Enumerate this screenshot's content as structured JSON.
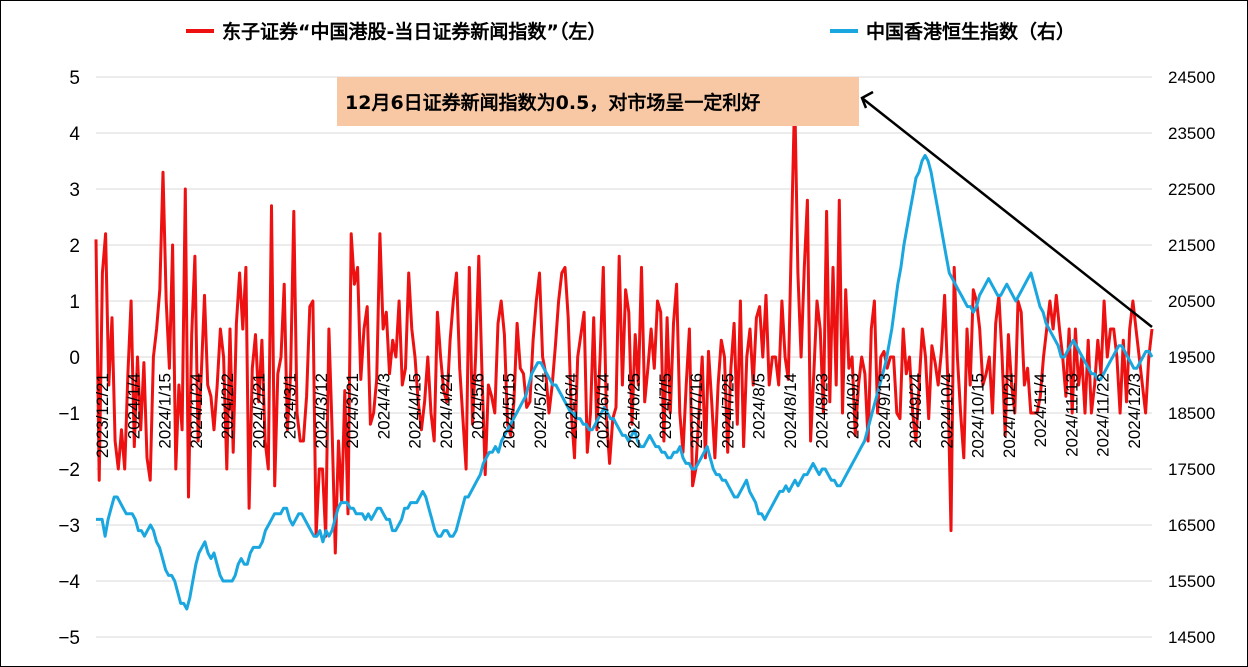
{
  "chart_data": {
    "type": "line",
    "colors": {
      "hsi_news": "#ee1111",
      "hsi": "#1aa7df",
      "annotation_bg": "#f8c8a4"
    },
    "legend": [
      {
        "label": "东子证券“中国港股-当日证券新闻指数”（左）",
        "color": "#ee1111"
      },
      {
        "label": "中国香港恒生指数（右）",
        "color": "#1aa7df"
      }
    ],
    "left_axis": {
      "min": -5,
      "max": 5,
      "ticks": [
        "5",
        "4",
        "3",
        "2",
        "1",
        "0",
        "−1",
        "−2",
        "−3",
        "−4",
        "−5"
      ]
    },
    "right_axis": {
      "min": 14500,
      "max": 24500,
      "ticks": [
        "24500",
        "23500",
        "22500",
        "21500",
        "20500",
        "19500",
        "18500",
        "17500",
        "16500",
        "15500",
        "14500"
      ]
    },
    "x_tick_labels": [
      "2023/12/21",
      "2024/1/4",
      "2024/1/15",
      "2024/1/24",
      "2024/2/2",
      "2024/2/21",
      "2024/3/1",
      "2024/3/12",
      "2024/3/21",
      "2024/4/3",
      "2024/4/15",
      "2024/4/24",
      "2024/5/6",
      "2024/5/15",
      "2024/5/24",
      "2024/6/4",
      "2024/6/14",
      "2024/6/25",
      "2024/7/5",
      "2024/7/16",
      "2024/7/25",
      "2024/8/5",
      "2024/8/14",
      "2024/8/23",
      "2024/9/3",
      "2024/9/13",
      "2024/9/24",
      "2024/10/4",
      "2024/10/15",
      "2024/10/24",
      "2024/11/4",
      "2024/11/13",
      "2024/11/22",
      "2024/12/3"
    ],
    "annotation": {
      "text": "12月6日证券新闻指数为0.5，对市场呈一定利好"
    },
    "series": [
      {
        "axis": "left",
        "values": [
          2.1,
          -2.2,
          1.5,
          2.2,
          -0.5,
          0.7,
          -1.5,
          -2.0,
          -1.3,
          -2.0,
          -0.3,
          1.0,
          -1.6,
          0.0,
          -1.3,
          -0.1,
          -1.8,
          -2.2,
          0.0,
          0.5,
          1.2,
          3.3,
          1.0,
          -0.2,
          2.0,
          -2.0,
          -0.5,
          -1.3,
          3.0,
          -2.5,
          0.4,
          1.8,
          -1.5,
          -0.3,
          1.1,
          -0.5,
          -0.7,
          -1.3,
          -0.5,
          0.5,
          0.0,
          -2.0,
          0.5,
          -1.7,
          0.6,
          1.5,
          0.5,
          1.6,
          -2.7,
          -0.2,
          0.4,
          -0.8,
          0.3,
          -1.5,
          -2.0,
          2.7,
          -2.3,
          -0.3,
          0.0,
          1.3,
          -1.3,
          -0.3,
          2.6,
          -1.0,
          -1.5,
          -1.5,
          -0.7,
          0.9,
          1.0,
          -3.2,
          -2.0,
          -2.0,
          -3.2,
          0.5,
          -1.3,
          -3.5,
          -1.5,
          -2.6,
          -0.6,
          -2.8,
          2.2,
          1.3,
          1.6,
          -0.4,
          0.5,
          0.9,
          -1.2,
          -1.0,
          -0.4,
          2.2,
          0.5,
          0.8,
          -0.3,
          0.3,
          0.0,
          1.0,
          -0.5,
          -0.2,
          1.5,
          0.5,
          0.0,
          -0.8,
          -1.3,
          -0.8,
          0.0,
          -1.0,
          -1.5,
          0.8,
          0.0,
          -0.6,
          -0.8,
          0.3,
          1.0,
          1.5,
          -0.2,
          -1.1,
          -2.0,
          1.6,
          -1.2,
          0.0,
          1.8,
          -0.3,
          -2.1,
          -0.5,
          -0.7,
          -1.0,
          0.6,
          1.0,
          0.4,
          -1.2,
          -1.4,
          -0.8,
          0.6,
          -0.2,
          -0.3,
          -0.9,
          -0.8,
          0.3,
          1.0,
          1.5,
          0.0,
          -0.3,
          -1.0,
          -0.5,
          0.2,
          1.0,
          1.5,
          1.6,
          0.7,
          -1.0,
          -1.8,
          0.0,
          0.4,
          0.8,
          -1.7,
          -1.0,
          0.7,
          -1.3,
          0.0,
          1.6,
          -1.1,
          -1.9,
          -1.1,
          -0.9,
          1.8,
          -0.5,
          1.2,
          0.8,
          -1.2,
          0.4,
          -0.5,
          1.6,
          -0.8,
          -0.2,
          0.5,
          -0.2,
          1.0,
          0.8,
          -1.5,
          0.7,
          -1.0,
          0.6,
          1.3,
          -1.0,
          -1.7,
          -0.5,
          0.5,
          -2.3,
          -2.0,
          -1.0,
          0.0,
          -1.8,
          0.1,
          -0.8,
          -1.8,
          -0.5,
          0.3,
          0.0,
          -1.7,
          -0.2,
          0.6,
          -1.2,
          1.0,
          -1.6,
          0.0,
          0.5,
          -0.5,
          0.7,
          0.9,
          0.0,
          1.1,
          -0.5,
          0.0,
          0.0,
          -0.5,
          1.0,
          0.0,
          -0.4,
          2.2,
          4.7,
          1.5,
          0.0,
          1.6,
          2.8,
          -1.5,
          -0.3,
          1.0,
          0.5,
          -1.0,
          2.6,
          -0.8,
          1.6,
          -0.5,
          2.8,
          -1.0,
          1.2,
          -0.2,
          0.0,
          -1.4,
          -0.5,
          0.0,
          -0.3,
          -1.5,
          0.5,
          1.0,
          -1.0,
          0.0,
          0.1,
          -0.2,
          0.0,
          0.0,
          -1.0,
          -1.1,
          0.5,
          -0.3,
          0.0,
          -1.0,
          -1.5,
          -0.5,
          0.5,
          0.0,
          -1.1,
          0.2,
          -0.1,
          -0.5,
          0.1,
          1.1,
          -0.4,
          -3.1,
          1.6,
          0.0,
          -1.0,
          -1.8,
          0.5,
          -0.5,
          1.2,
          1.0,
          0.5,
          -0.5,
          -0.3,
          0.0,
          -1.0,
          0.6,
          1.1,
          0.0,
          -1.4,
          0.4,
          -0.5,
          -1.0,
          1.0,
          0.8,
          -0.5,
          -0.2,
          -1.0,
          -1.0,
          -1.0,
          -0.7,
          0.0,
          0.5,
          1.0,
          0.5,
          1.1,
          0.5,
          0.0,
          -0.7,
          0.5,
          -1.0,
          0.5,
          -0.5,
          0.0,
          -1.0,
          0.3,
          -1.0,
          -0.5,
          0.3,
          -0.3,
          1.0,
          0.0,
          0.5,
          0.5,
          0.0,
          -1.0,
          0.3,
          -0.8,
          0.5,
          1.0,
          0.5,
          0.0,
          -0.5,
          -1.0,
          0.0,
          0.5
        ]
      },
      {
        "axis": "right",
        "values": [
          16600,
          16600,
          16600,
          16300,
          16600,
          16800,
          17000,
          17000,
          16900,
          16800,
          16700,
          16700,
          16700,
          16600,
          16400,
          16400,
          16300,
          16400,
          16500,
          16400,
          16200,
          16100,
          15900,
          15700,
          15600,
          15600,
          15500,
          15300,
          15100,
          15100,
          15000,
          15200,
          15500,
          15800,
          16000,
          16100,
          16200,
          16000,
          15900,
          16000,
          15800,
          15600,
          15500,
          15500,
          15500,
          15500,
          15600,
          15800,
          15900,
          15800,
          15800,
          16000,
          16100,
          16100,
          16100,
          16200,
          16400,
          16500,
          16600,
          16700,
          16700,
          16700,
          16800,
          16800,
          16600,
          16500,
          16600,
          16700,
          16700,
          16600,
          16500,
          16400,
          16300,
          16300,
          16400,
          16200,
          16400,
          16300,
          16400,
          16600,
          16800,
          16900,
          16900,
          16900,
          16800,
          16800,
          16700,
          16700,
          16700,
          16600,
          16700,
          16600,
          16700,
          16800,
          16800,
          16700,
          16600,
          16600,
          16400,
          16400,
          16500,
          16600,
          16800,
          16800,
          16900,
          16900,
          16900,
          17000,
          17100,
          17000,
          16800,
          16600,
          16400,
          16300,
          16300,
          16400,
          16400,
          16300,
          16300,
          16400,
          16600,
          16800,
          17000,
          17000,
          17100,
          17200,
          17300,
          17400,
          17600,
          17700,
          17800,
          17800,
          17900,
          17800,
          18000,
          18100,
          18200,
          18300,
          18400,
          18500,
          18600,
          18700,
          18800,
          19000,
          19200,
          19300,
          19400,
          19400,
          19300,
          19200,
          19100,
          19000,
          19000,
          18900,
          18800,
          18700,
          18600,
          18500,
          18500,
          18400,
          18400,
          18300,
          18300,
          18200,
          18200,
          18300,
          18400,
          18500,
          18600,
          18500,
          18400,
          18400,
          18300,
          18200,
          18100,
          18100,
          18000,
          18100,
          18200,
          18000,
          17900,
          17900,
          18000,
          18100,
          18000,
          17900,
          17900,
          17800,
          17800,
          17700,
          17700,
          17800,
          17800,
          17900,
          17700,
          17600,
          17600,
          17500,
          17500,
          17600,
          17700,
          17800,
          17900,
          17700,
          17500,
          17400,
          17400,
          17300,
          17300,
          17200,
          17100,
          17000,
          17000,
          17100,
          17200,
          17300,
          17100,
          17000,
          16900,
          16700,
          16700,
          16600,
          16700,
          16800,
          16900,
          17000,
          17100,
          17100,
          17200,
          17100,
          17200,
          17300,
          17200,
          17300,
          17400,
          17400,
          17500,
          17600,
          17500,
          17400,
          17500,
          17500,
          17400,
          17300,
          17300,
          17200,
          17200,
          17300,
          17400,
          17500,
          17600,
          17700,
          17800,
          17900,
          18000,
          18200,
          18400,
          18600,
          18800,
          19000,
          19200,
          19400,
          19700,
          20000,
          20400,
          20800,
          21100,
          21500,
          21800,
          22100,
          22400,
          22700,
          22800,
          23000,
          23100,
          23000,
          22800,
          22500,
          22200,
          21900,
          21600,
          21300,
          21000,
          20900,
          20800,
          20700,
          20600,
          20500,
          20400,
          20400,
          20300,
          20400,
          20600,
          20700,
          20800,
          20900,
          20800,
          20700,
          20600,
          20600,
          20700,
          20800,
          20700,
          20600,
          20500,
          20600,
          20700,
          20800,
          20900,
          21000,
          20800,
          20600,
          20400,
          20300,
          20100,
          20000,
          19900,
          19800,
          19700,
          19500,
          19500,
          19600,
          19700,
          19800,
          19700,
          19600,
          19500,
          19400,
          19300,
          19200,
          19200,
          19100,
          19100,
          19200,
          19300,
          19400,
          19500,
          19600,
          19700,
          19700,
          19600,
          19500,
          19400,
          19300,
          19300,
          19400,
          19500,
          19600,
          19600,
          19500
        ]
      }
    ]
  }
}
